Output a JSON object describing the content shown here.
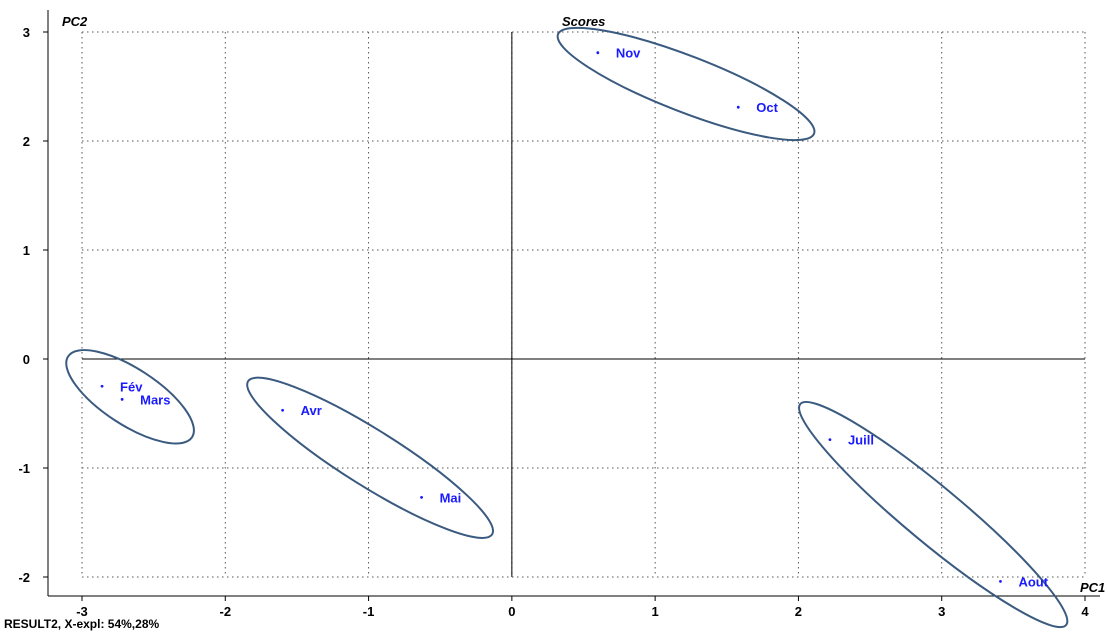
{
  "chart_data": {
    "type": "scatter",
    "title": "Scores",
    "xlabel": "PC1",
    "ylabel": "PC2",
    "xlim": [
      -3.2,
      4.05
    ],
    "ylim": [
      -2.2,
      3.1
    ],
    "xticks": [
      -3,
      -2,
      -1,
      0,
      1,
      2,
      3,
      4
    ],
    "yticks": [
      -2,
      -1,
      0,
      1,
      2,
      3
    ],
    "grid": true,
    "colors": {
      "points": "#1a1aff",
      "ellipses": "#3a5a80",
      "axes": "#000000",
      "grid": "#555555"
    },
    "points": [
      {
        "label": "Nov",
        "x": 0.6,
        "y": 2.81
      },
      {
        "label": "Oct",
        "x": 1.58,
        "y": 2.31
      },
      {
        "label": "Fév",
        "x": -2.86,
        "y": -0.25
      },
      {
        "label": "Mars",
        "x": -2.72,
        "y": -0.37
      },
      {
        "label": "Avr",
        "x": -1.6,
        "y": -0.47
      },
      {
        "label": "Mai",
        "x": -0.63,
        "y": -1.27
      },
      {
        "label": "Juill",
        "x": 2.22,
        "y": -0.74
      },
      {
        "label": "Aout",
        "x": 3.41,
        "y": -2.04
      }
    ],
    "groups": [
      {
        "members": [
          "Nov",
          "Oct"
        ]
      },
      {
        "members": [
          "Fév",
          "Mars"
        ]
      },
      {
        "members": [
          "Avr",
          "Mai"
        ]
      },
      {
        "members": [
          "Juill",
          "Aout"
        ]
      }
    ]
  },
  "footer": "RESULT2, X-expl: 54%,28%"
}
